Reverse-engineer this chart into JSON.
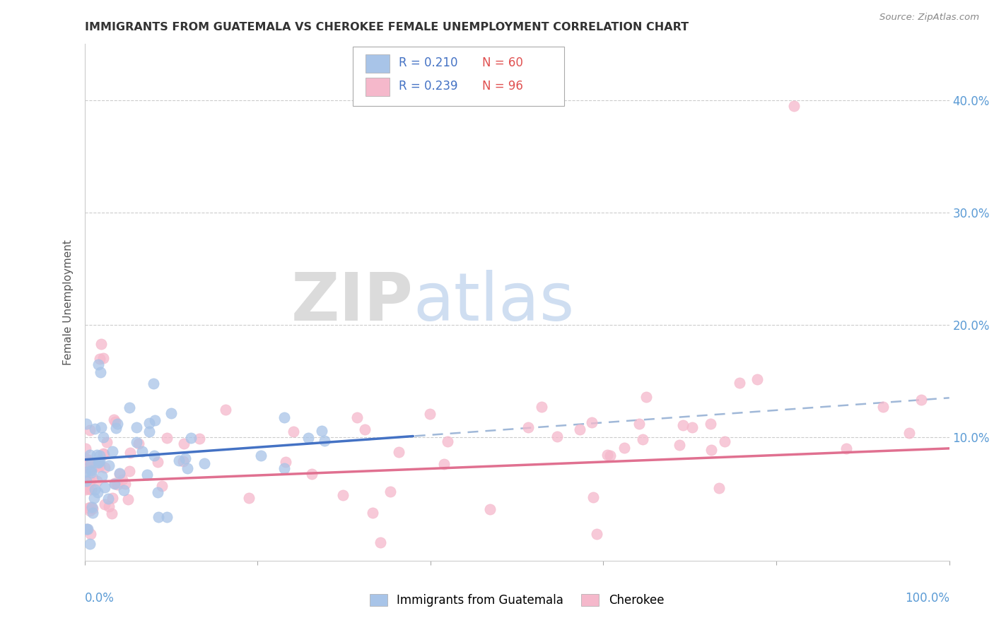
{
  "title": "IMMIGRANTS FROM GUATEMALA VS CHEROKEE FEMALE UNEMPLOYMENT CORRELATION CHART",
  "source": "Source: ZipAtlas.com",
  "ylabel": "Female Unemployment",
  "legend1_label": "Immigrants from Guatemala",
  "legend2_label": "Cherokee",
  "blue_color": "#a8c4e8",
  "pink_color": "#f5b8cb",
  "blue_line_color": "#4472c4",
  "pink_line_color": "#e07090",
  "dashed_line_color": "#a0b8d8",
  "xlim": [
    0.0,
    1.0
  ],
  "ylim": [
    -0.01,
    0.45
  ],
  "watermark_zip": "ZIP",
  "watermark_atlas": "atlas",
  "background_color": "#ffffff",
  "grid_color": "#cccccc",
  "legend_r1": "R = 0.210",
  "legend_n1": "N = 60",
  "legend_r2": "R = 0.239",
  "legend_n2": "N = 96",
  "r_color": "#4472c4",
  "n_color": "#e05050",
  "ytick_vals": [
    0.0,
    0.1,
    0.2,
    0.3,
    0.4
  ],
  "ytick_labels": [
    "",
    "10.0%",
    "20.0%",
    "30.0%",
    "40.0%"
  ]
}
